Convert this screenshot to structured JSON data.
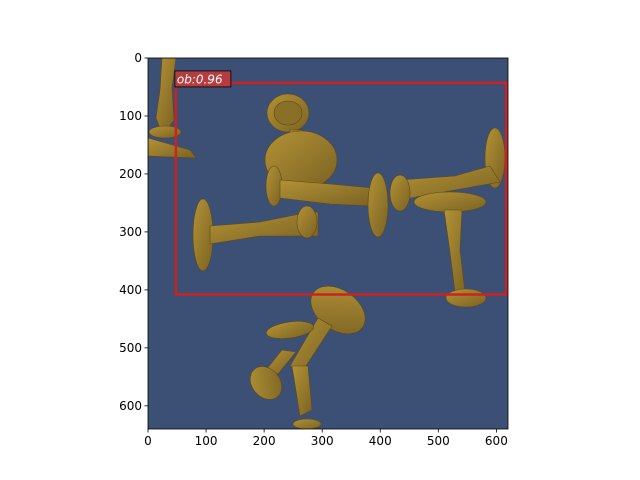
{
  "chart_data": {
    "type": "image",
    "title": "",
    "xlabel": "",
    "ylabel": "",
    "xlim": [
      0,
      620
    ],
    "ylim": [
      640,
      0
    ],
    "image_extent": {
      "width": 620,
      "height": 640
    },
    "x_ticks": [
      0,
      100,
      200,
      300,
      400,
      500,
      600
    ],
    "y_ticks": [
      0,
      100,
      200,
      300,
      400,
      500,
      600
    ],
    "grid": false,
    "background_color": "#3c4f75",
    "object_color": "#9a7d2d",
    "detections": [
      {
        "label": "ob:0.96",
        "x0": 48,
        "y0": 43,
        "x1": 617,
        "y1": 408,
        "color": "#cc2222"
      }
    ]
  }
}
